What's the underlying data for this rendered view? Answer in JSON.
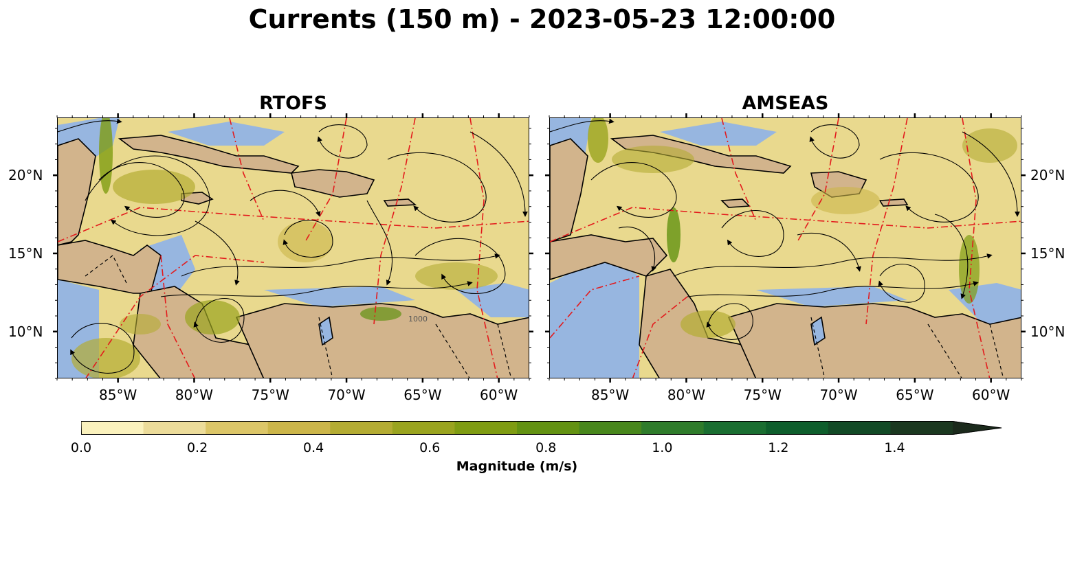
{
  "figure": {
    "title": "Currents (150 m) - 2023-05-23 12:00:00"
  },
  "panels": [
    {
      "title": "RTOFS"
    },
    {
      "title": "AMSEAS"
    }
  ],
  "map_extent": {
    "lon_min": -89,
    "lon_max": -58,
    "lat_min": 7,
    "lat_max": 23.7
  },
  "axes": {
    "lon_ticks": [
      {
        "value": -85,
        "label": "85°W"
      },
      {
        "value": -80,
        "label": "80°W"
      },
      {
        "value": -75,
        "label": "75°W"
      },
      {
        "value": -70,
        "label": "70°W"
      },
      {
        "value": -65,
        "label": "65°W"
      },
      {
        "value": -60,
        "label": "60°W"
      }
    ],
    "lat_ticks": [
      {
        "value": 20,
        "label": "20°N"
      },
      {
        "value": 15,
        "label": "15°N"
      },
      {
        "value": 10,
        "label": "10°N"
      }
    ]
  },
  "map_layers": {
    "ocean_color": "#e9d98e",
    "land_color": "#d2b48c",
    "shelf_water_color": "#97b6e0",
    "coastline_color": "#000000",
    "eez_boundary_color": "#e31a1c",
    "border_style": "dashed black",
    "streamline_color": "#000000",
    "bathymetry_contour_label": "1000"
  },
  "colorbar": {
    "title": "Magnitude (m/s)",
    "min": 0.0,
    "max": 1.6,
    "extend": "max",
    "tick_labels": [
      {
        "value": 0.0,
        "label": "0.0"
      },
      {
        "value": 0.2,
        "label": "0.2"
      },
      {
        "value": 0.4,
        "label": "0.4"
      },
      {
        "value": 0.6,
        "label": "0.6"
      },
      {
        "value": 0.8,
        "label": "0.8"
      },
      {
        "value": 1.0,
        "label": "1.0"
      },
      {
        "value": 1.2,
        "label": "1.2"
      },
      {
        "value": 1.4,
        "label": "1.4"
      }
    ],
    "colors": [
      "#fbf2bd",
      "#ecdc9a",
      "#dcc668",
      "#ccb64a",
      "#b4ac33",
      "#9aa41f",
      "#7f9c12",
      "#639212",
      "#48871c",
      "#2f7c2b",
      "#1a6e31",
      "#0e5e2c",
      "#124a26",
      "#1b3820",
      "#1b2a1c"
    ]
  }
}
